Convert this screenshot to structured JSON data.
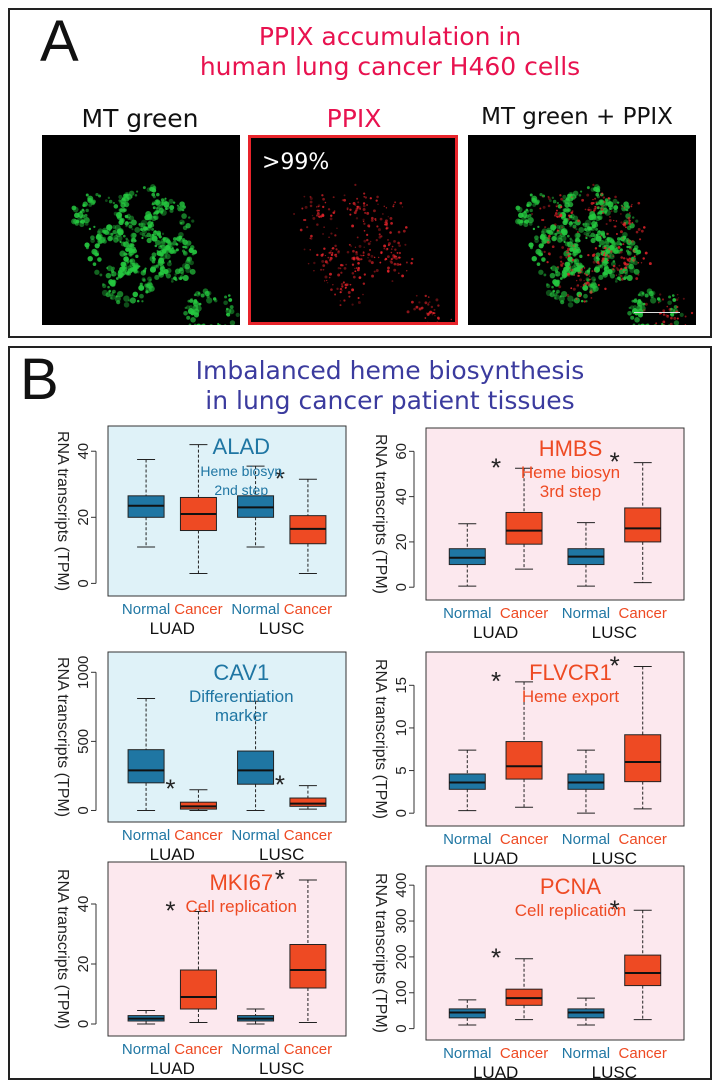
{
  "panelA": {
    "letter": "A",
    "title_line1": "PPIX accumulation in",
    "title_line2": "human lung cancer H460 cells",
    "images": [
      {
        "label": "MT green"
      },
      {
        "label": "PPIX",
        "overlay": ">99%"
      },
      {
        "label": "MT green + PPIX"
      }
    ]
  },
  "panelB": {
    "letter": "B",
    "title_line1": "Imbalanced heme biosynthesis",
    "title_line2": "in lung cancer patient tissues",
    "ylabel": "RNA transcripts (TPM)"
  },
  "colors": {
    "normal": "#1f76a3",
    "cancer": "#ee4a23",
    "title_red": "#e8124f",
    "title_blue": "#3b3b9e",
    "bg_blue": "#dff2f8",
    "bg_pink": "#fce8ee"
  },
  "chart_data": [
    {
      "type": "box",
      "gene": "ALAD",
      "note": "Heme biosyn\n2nd step",
      "bg": "blue",
      "label_color": "blue",
      "yticks": [
        0,
        20,
        40
      ],
      "ylim": [
        -2,
        44
      ],
      "groups": [
        "LUAD",
        "LUSC"
      ],
      "categories": [
        "Normal",
        "Cancer"
      ],
      "boxes": [
        {
          "group": "LUAD",
          "type": "Normal",
          "min": 11,
          "q1": 20,
          "median": 23.5,
          "q3": 26.5,
          "max": 37.5
        },
        {
          "group": "LUAD",
          "type": "Cancer",
          "min": 3,
          "q1": 16,
          "median": 21,
          "q3": 26,
          "max": 42
        },
        {
          "group": "LUSC",
          "type": "Normal",
          "min": 11,
          "q1": 20,
          "median": 23,
          "q3": 26.5,
          "max": 35.5
        },
        {
          "group": "LUSC",
          "type": "Cancer",
          "min": 3,
          "q1": 12,
          "median": 16.5,
          "q3": 20.5,
          "max": 31.5
        }
      ],
      "stars": [
        "LUSC"
      ]
    },
    {
      "type": "box",
      "gene": "HMBS",
      "note": "Heme biosyn\n3rd step",
      "bg": "pink",
      "label_color": "red",
      "yticks": [
        0,
        20,
        40,
        60
      ],
      "ylim": [
        -3,
        65
      ],
      "groups": [
        "LUAD",
        "LUSC"
      ],
      "categories": [
        "Normal",
        "Cancer"
      ],
      "boxes": [
        {
          "group": "LUAD",
          "type": "Normal",
          "min": 0.5,
          "q1": 10,
          "median": 13,
          "q3": 17,
          "max": 28
        },
        {
          "group": "LUAD",
          "type": "Cancer",
          "min": 8,
          "q1": 19,
          "median": 25,
          "q3": 33,
          "max": 52.5
        },
        {
          "group": "LUSC",
          "type": "Normal",
          "min": 0.5,
          "q1": 10,
          "median": 13.5,
          "q3": 17,
          "max": 28.5
        },
        {
          "group": "LUSC",
          "type": "Cancer",
          "min": 2,
          "q1": 20,
          "median": 26,
          "q3": 35,
          "max": 55
        }
      ],
      "stars": [
        "LUAD",
        "LUSC"
      ]
    },
    {
      "type": "box",
      "gene": "CAV1",
      "note": "Differentiation\nmarker",
      "bg": "blue",
      "label_color": "blue",
      "yticks": [
        0,
        500,
        1000
      ],
      "ylim": [
        -40,
        1060
      ],
      "groups": [
        "LUAD",
        "LUSC"
      ],
      "categories": [
        "Normal",
        "Cancer"
      ],
      "boxes": [
        {
          "group": "LUAD",
          "type": "Normal",
          "min": 0,
          "q1": 200,
          "median": 290,
          "q3": 440,
          "max": 810
        },
        {
          "group": "LUAD",
          "type": "Cancer",
          "min": 0,
          "q1": 10,
          "median": 30,
          "q3": 60,
          "max": 150
        },
        {
          "group": "LUSC",
          "type": "Normal",
          "min": 0,
          "q1": 190,
          "median": 290,
          "q3": 430,
          "max": 790
        },
        {
          "group": "LUSC",
          "type": "Cancer",
          "min": 10,
          "q1": 30,
          "median": 50,
          "q3": 90,
          "max": 180
        }
      ],
      "stars": [
        "LUAD",
        "LUSC"
      ]
    },
    {
      "type": "box",
      "gene": "FLVCR1",
      "note": "Heme export",
      "bg": "pink",
      "label_color": "red",
      "yticks": [
        0,
        5,
        10,
        15
      ],
      "ylim": [
        -0.8,
        17.5
      ],
      "groups": [
        "LUAD",
        "LUSC"
      ],
      "categories": [
        "Normal",
        "Cancer"
      ],
      "boxes": [
        {
          "group": "LUAD",
          "type": "Normal",
          "min": 0.3,
          "q1": 2.8,
          "median": 3.6,
          "q3": 4.6,
          "max": 7.4
        },
        {
          "group": "LUAD",
          "type": "Cancer",
          "min": 0.7,
          "q1": 4.0,
          "median": 5.5,
          "q3": 8.4,
          "max": 15.4
        },
        {
          "group": "LUSC",
          "type": "Normal",
          "min": 0,
          "q1": 2.8,
          "median": 3.6,
          "q3": 4.6,
          "max": 7.4
        },
        {
          "group": "LUSC",
          "type": "Cancer",
          "min": 0.5,
          "q1": 3.7,
          "median": 6.0,
          "q3": 9.2,
          "max": 17.2
        }
      ],
      "stars": [
        "LUAD",
        "LUSC"
      ]
    },
    {
      "type": "box",
      "gene": "MKI67",
      "note": "Cell replication",
      "bg": "pink",
      "label_color": "red",
      "yticks": [
        0,
        20,
        40
      ],
      "ylim": [
        -2,
        50
      ],
      "groups": [
        "LUAD",
        "LUSC"
      ],
      "categories": [
        "Normal",
        "Cancer"
      ],
      "boxes": [
        {
          "group": "LUAD",
          "type": "Normal",
          "min": 0,
          "q1": 1,
          "median": 1.8,
          "q3": 2.8,
          "max": 4.5
        },
        {
          "group": "LUAD",
          "type": "Cancer",
          "min": 0.5,
          "q1": 5,
          "median": 9,
          "q3": 18,
          "max": 37.5
        },
        {
          "group": "LUSC",
          "type": "Normal",
          "min": 0,
          "q1": 1,
          "median": 1.8,
          "q3": 2.8,
          "max": 5
        },
        {
          "group": "LUSC",
          "type": "Cancer",
          "min": 0.5,
          "q1": 12,
          "median": 18,
          "q3": 26.5,
          "max": 48
        }
      ],
      "stars": [
        "LUAD",
        "LUSC"
      ]
    },
    {
      "type": "box",
      "gene": "PCNA",
      "note": "Cell replication",
      "bg": "pink",
      "label_color": "red",
      "yticks": [
        0,
        100,
        200,
        300,
        400
      ],
      "ylim": [
        -15,
        420
      ],
      "groups": [
        "LUAD",
        "LUSC"
      ],
      "categories": [
        "Normal",
        "Cancer"
      ],
      "boxes": [
        {
          "group": "LUAD",
          "type": "Normal",
          "min": 10,
          "q1": 30,
          "median": 45,
          "q3": 55,
          "max": 80
        },
        {
          "group": "LUAD",
          "type": "Cancer",
          "min": 25,
          "q1": 65,
          "median": 85,
          "q3": 110,
          "max": 195
        },
        {
          "group": "LUSC",
          "type": "Normal",
          "min": 10,
          "q1": 30,
          "median": 45,
          "q3": 55,
          "max": 85
        },
        {
          "group": "LUSC",
          "type": "Cancer",
          "min": 25,
          "q1": 120,
          "median": 155,
          "q3": 205,
          "max": 330
        }
      ],
      "stars": [
        "LUAD",
        "LUSC"
      ]
    }
  ]
}
